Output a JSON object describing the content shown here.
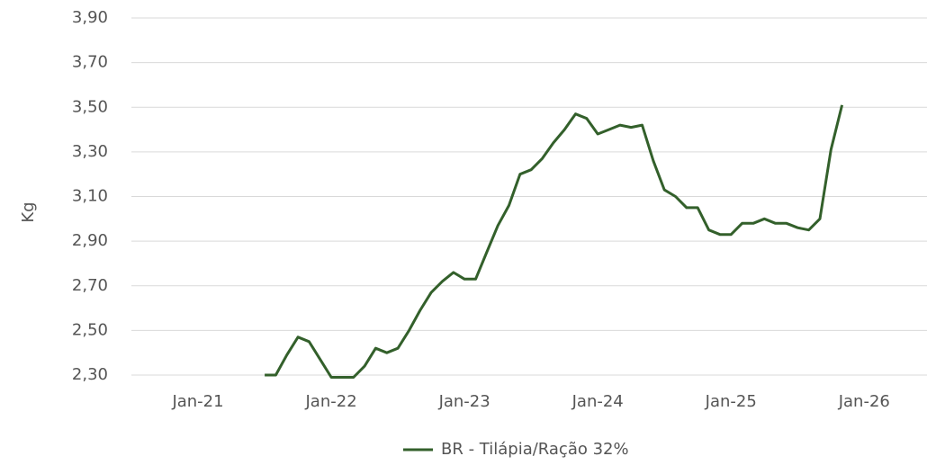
{
  "chart_data": {
    "type": "line",
    "y_label": "Kg",
    "x": [
      "Jul-21",
      "Aug-21",
      "Sep-21",
      "Oct-21",
      "Nov-21",
      "Dec-21",
      "Jan-22",
      "Feb-22",
      "Mar-22",
      "Apr-22",
      "May-22",
      "Jun-22",
      "Jul-22",
      "Aug-22",
      "Sep-22",
      "Oct-22",
      "Nov-22",
      "Dec-22",
      "Jan-23",
      "Feb-23",
      "Mar-23",
      "Apr-23",
      "May-23",
      "Jun-23",
      "Jul-23",
      "Aug-23",
      "Sep-23",
      "Oct-23",
      "Nov-23",
      "Dec-23",
      "Jan-24",
      "Feb-24",
      "Mar-24",
      "Apr-24",
      "May-24",
      "Jun-24",
      "Jul-24",
      "Aug-24",
      "Sep-24",
      "Oct-24",
      "Nov-24",
      "Dec-24",
      "Jan-25",
      "Feb-25",
      "Mar-25",
      "Apr-25",
      "May-25",
      "Jun-25",
      "Jul-25",
      "Aug-25",
      "Sep-25",
      "Oct-25",
      "Nov-25"
    ],
    "series": [
      {
        "name": "BR - Tilápia/Ração 32%",
        "color": "#33602b",
        "values": [
          2.3,
          2.3,
          2.39,
          2.47,
          2.45,
          2.37,
          2.29,
          2.29,
          2.29,
          2.34,
          2.42,
          2.4,
          2.42,
          2.5,
          2.59,
          2.67,
          2.72,
          2.76,
          2.73,
          2.73,
          2.85,
          2.97,
          3.06,
          3.2,
          3.22,
          3.27,
          3.34,
          3.4,
          3.47,
          3.45,
          3.38,
          3.4,
          3.42,
          3.41,
          3.42,
          3.26,
          3.13,
          3.1,
          3.05,
          3.05,
          2.95,
          2.93,
          2.93,
          2.98,
          2.98,
          3.0,
          2.98,
          2.98,
          2.96,
          2.95,
          3.0,
          3.31,
          3.51
        ]
      }
    ],
    "xlim": [
      "Jul-20",
      "Jun-26"
    ],
    "xticks": [
      "Jan-21",
      "Jan-22",
      "Jan-23",
      "Jan-24",
      "Jan-25",
      "Jan-26"
    ],
    "ylim": [
      2.3,
      3.9
    ],
    "yticks": [
      {
        "value": 2.3,
        "label": "2,30"
      },
      {
        "value": 2.5,
        "label": "2,50"
      },
      {
        "value": 2.7,
        "label": "2,70"
      },
      {
        "value": 2.9,
        "label": "2,90"
      },
      {
        "value": 3.1,
        "label": "3,10"
      },
      {
        "value": 3.3,
        "label": "3,30"
      },
      {
        "value": 3.5,
        "label": "3,50"
      },
      {
        "value": 3.7,
        "label": "3,70"
      },
      {
        "value": 3.9,
        "label": "3,90"
      }
    ],
    "grid": true,
    "legend": "bottom"
  }
}
